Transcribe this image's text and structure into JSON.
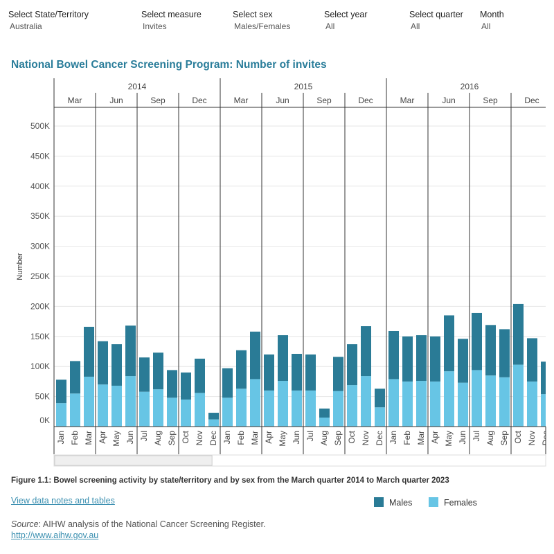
{
  "filters": [
    {
      "label": "Select State/Territory",
      "value": "Australia"
    },
    {
      "label": "Select measure",
      "value": "Invites"
    },
    {
      "label": "Select sex",
      "value": "Males/Females"
    },
    {
      "label": "Select year",
      "value": "All"
    },
    {
      "label": "Select quarter",
      "value": "All"
    },
    {
      "label": "Month",
      "value": "All"
    }
  ],
  "title": "National Bowel Cancer Screening Program: Number of invites",
  "caption": "Figure 1.1: Bowel screening activity by state/territory and by sex from the March quarter 2014 to March quarter 2023",
  "notes_link": "View data notes and tables",
  "source_label": "Source",
  "source_text": ": AIHW analysis of the National Cancer Screening Register.",
  "url": "http://www.aihw.gov.au",
  "chart_data": {
    "type": "bar",
    "stacked": true,
    "ylabel": "Number",
    "ylim": [
      0,
      530000
    ],
    "yticks": [
      0,
      50000,
      100000,
      150000,
      200000,
      250000,
      300000,
      350000,
      400000,
      450000,
      500000
    ],
    "ytick_labels": [
      "0K",
      "50K",
      "100K",
      "150K",
      "200K",
      "250K",
      "300K",
      "350K",
      "400K",
      "450K",
      "500K"
    ],
    "grid": true,
    "legend_position": "bottom-right",
    "years": [
      "2014",
      "2015",
      "2016"
    ],
    "quarters": [
      "Mar",
      "Jun",
      "Sep",
      "Dec"
    ],
    "categories": [
      "Jan",
      "Feb",
      "Mar",
      "Apr",
      "May",
      "Jun",
      "Jul",
      "Aug",
      "Sep",
      "Oct",
      "Nov",
      "Dec",
      "Jan",
      "Feb",
      "Mar",
      "Apr",
      "May",
      "Jun",
      "Jul",
      "Aug",
      "Sep",
      "Oct",
      "Nov",
      "Dec",
      "Jan",
      "Feb",
      "Mar",
      "Apr",
      "May",
      "Jun",
      "Jul",
      "Aug",
      "Sep",
      "Oct",
      "Nov",
      "Dec"
    ],
    "series": [
      {
        "name": "Females",
        "color": "#67c5e5",
        "values": [
          39000,
          55000,
          83000,
          70000,
          68000,
          84000,
          58000,
          62000,
          48000,
          45000,
          56000,
          12000,
          48000,
          63000,
          79000,
          60000,
          76000,
          60000,
          60000,
          15000,
          59000,
          69000,
          84000,
          32000,
          79000,
          75000,
          76000,
          75000,
          92000,
          73000,
          94000,
          85000,
          82000,
          103000,
          75000,
          54000
        ]
      },
      {
        "name": "Males",
        "color": "#2a7b96",
        "values": [
          39000,
          54000,
          83000,
          72000,
          69000,
          84000,
          57000,
          61000,
          46000,
          45000,
          57000,
          11000,
          49000,
          64000,
          79000,
          60000,
          76000,
          61000,
          60000,
          15000,
          57000,
          68000,
          83000,
          31000,
          80000,
          75000,
          76000,
          75000,
          93000,
          73000,
          95000,
          84000,
          80000,
          101000,
          72000,
          54000
        ]
      }
    ],
    "scrollbar_position": 0.32
  }
}
